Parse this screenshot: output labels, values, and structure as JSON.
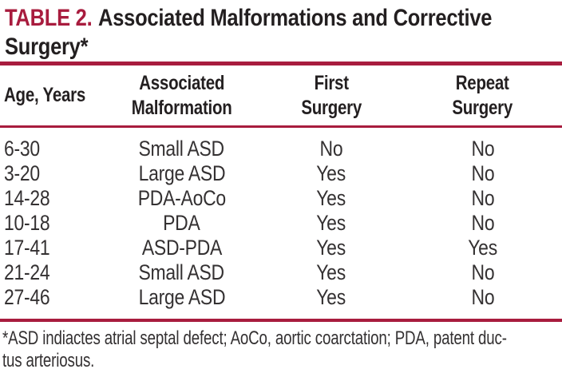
{
  "title": {
    "label": "TABLE 2.",
    "text": "Associated Malformations and Corrective Surgery*"
  },
  "table": {
    "columns": [
      {
        "id": "age",
        "label": "Age, Years"
      },
      {
        "id": "malformation",
        "label": "Associated\nMalformation"
      },
      {
        "id": "first_surgery",
        "label": "First\nSurgery"
      },
      {
        "id": "repeat_surgery",
        "label": "Repeat\nSurgery"
      }
    ],
    "rows": [
      {
        "age": "6-30",
        "malformation": "Small ASD",
        "first_surgery": "No",
        "repeat_surgery": "No"
      },
      {
        "age": "3-20",
        "malformation": "Large ASD",
        "first_surgery": "Yes",
        "repeat_surgery": "No"
      },
      {
        "age": "14-28",
        "malformation": "PDA-AoCo",
        "first_surgery": "Yes",
        "repeat_surgery": "No"
      },
      {
        "age": "10-18",
        "malformation": "PDA",
        "first_surgery": "Yes",
        "repeat_surgery": "No"
      },
      {
        "age": "17-41",
        "malformation": "ASD-PDA",
        "first_surgery": "Yes",
        "repeat_surgery": "Yes"
      },
      {
        "age": "21-24",
        "malformation": "Small ASD",
        "first_surgery": "Yes",
        "repeat_surgery": "No"
      },
      {
        "age": "27-46",
        "malformation": "Large ASD",
        "first_surgery": "Yes",
        "repeat_surgery": "No"
      }
    ]
  },
  "footnote": {
    "line1": "*ASD indiactes atrial septal defect; AoCo, aortic coarctation; PDA, patent duc-",
    "line2": "tus arteriosus.",
    "full_text": "*ASD indiactes atrial septal defect; AoCo, aortic coarctation; PDA, patent ductus arteriosus."
  },
  "colors": {
    "accent_red": "#A81C3E",
    "title_ink": "#231F20",
    "body_ink": "#343132"
  }
}
